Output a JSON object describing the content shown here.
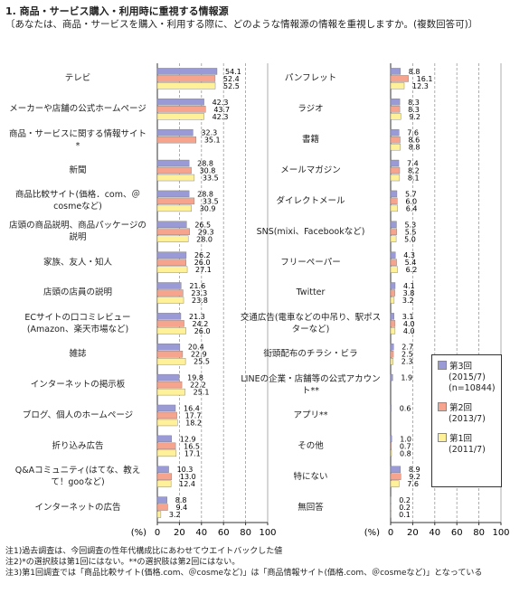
{
  "title": "1. 商品・サービス購入・利用時に重視する情報源",
  "subtitle": "〔あなたは、商品・サービスを購入・利用する際に、どのような情報源の情報を重視しますか。(複数回答可)〕",
  "notes": [
    "注1)過去調査は、今回調査の性年代構成比にあわせてウエイトバックした値",
    "注2)*の選択肢は第1回にはない。**の選択肢は第2回にはない。",
    "注3)第1回調査では「商品比較サイト(価格.com、＠cosmeなど)」は「商品情報サイト(価格.com、＠cosmeなど)」となっている"
  ],
  "chart_data": [
    {
      "type": "bar",
      "orientation": "horizontal",
      "x_label": "(%)",
      "xlim": [
        0,
        100
      ],
      "xticks": [
        0,
        20,
        40,
        60,
        80,
        100
      ],
      "grid": true,
      "categories": [
        "テレビ",
        "メーカーや店舗の公式ホームページ",
        "商品・サービスに関する情報サイト*",
        "新聞",
        "商品比較サイト(価格．com、＠cosmeなど)",
        "店頭の商品説明、商品パッケージの説明",
        "家族、友人・知人",
        "店頭の店員の説明",
        "ECサイトの口コミレビュー(Amazon、楽天市場など)",
        "雑誌",
        "インターネットの掲示板",
        "ブログ、個人のホームページ",
        "折り込み広告",
        "Q&Aコミュニティ(はてな、教えて！gooなど)",
        "インターネットの広告"
      ],
      "series": [
        {
          "name": "第3回",
          "color": "#9a9ad6",
          "values": [
            54.1,
            42.3,
            32.3,
            28.8,
            28.8,
            26.5,
            26.2,
            21.6,
            21.3,
            20.4,
            19.8,
            16.4,
            12.9,
            10.3,
            8.8
          ],
          "value_labels": [
            "54.1",
            "42.3",
            "32.3",
            "28.8",
            "28.8",
            "26.5",
            "26.2",
            "21.6",
            "21.3",
            "20.4",
            "19.8",
            "16.4",
            "12.9",
            "10.3",
            "8.8"
          ]
        },
        {
          "name": "第2回",
          "color": "#f6a48e",
          "values": [
            52.4,
            43.7,
            35.1,
            30.8,
            33.5,
            29.3,
            26.0,
            23.3,
            24.2,
            22.9,
            22.2,
            17.7,
            16.5,
            13.0,
            9.4
          ],
          "value_labels": [
            "52.4",
            "43.7",
            "35.1",
            "30.8",
            "33.5",
            "29.3",
            "26.0",
            "23.3",
            "24.2",
            "22.9",
            "22.2",
            "17.7",
            "16.5",
            "13.0",
            "9.4"
          ]
        },
        {
          "name": "第1回",
          "color": "#fff09a",
          "values": [
            52.5,
            42.3,
            null,
            33.5,
            30.9,
            28.0,
            27.1,
            23.8,
            26.0,
            25.5,
            25.1,
            18.2,
            17.1,
            12.4,
            3.2
          ],
          "value_labels": [
            "52.5",
            "42.3",
            null,
            "33.5",
            "30.9",
            "28.0",
            "27.1",
            "23.8",
            "26.0",
            "25.5",
            "25.1",
            "18.2",
            "17.1",
            "12.4",
            "3.2"
          ]
        }
      ]
    },
    {
      "type": "bar",
      "orientation": "horizontal",
      "x_label": "(%)",
      "xlim": [
        0,
        100
      ],
      "xticks": [
        0,
        20,
        40,
        60,
        80,
        100
      ],
      "grid": true,
      "legend": "lower right",
      "categories": [
        "パンフレット",
        "ラジオ",
        "書籍",
        "メールマガジン",
        "ダイレクトメール",
        "SNS(mixi、Facebookなど)",
        "フリーペーパー",
        "Twitter",
        "交通広告(電車などの中吊り、駅ポスターなど)",
        "街頭配布のチラシ・ビラ",
        "LINEの企業・店舗等の公式アカウント**",
        "アプリ**",
        "その他",
        "特にない",
        "無回答"
      ],
      "series": [
        {
          "name": "第3回",
          "period": "(2015/7)",
          "sample": "(n=10844)",
          "color": "#9a9ad6",
          "values": [
            8.8,
            8.3,
            7.6,
            7.4,
            5.7,
            5.3,
            4.3,
            4.1,
            3.1,
            2.7,
            1.9,
            0.6,
            1.0,
            8.9,
            0.2
          ],
          "value_labels": [
            "8.8",
            "8.3",
            "7.6",
            "7.4",
            "5.7",
            "5.3",
            "4.3",
            "4.1",
            "3.1",
            "2.7",
            "1.9",
            "0.6",
            "1.0",
            "8.9",
            "0.2"
          ]
        },
        {
          "name": "第2回",
          "period": "(2013/7)",
          "color": "#f6a48e",
          "values": [
            16.1,
            8.3,
            8.6,
            8.2,
            6.0,
            5.5,
            5.4,
            3.8,
            4.0,
            2.5,
            null,
            null,
            0.7,
            9.2,
            0.2
          ],
          "value_labels": [
            "16.1",
            "8.3",
            "8.6",
            "8.2",
            "6.0",
            "5.5",
            "5.4",
            "3.8",
            "4.0",
            "2.5",
            null,
            null,
            "0.7",
            "9.2",
            "0.2"
          ]
        },
        {
          "name": "第1回",
          "period": "(2011/7)",
          "color": "#fff09a",
          "values": [
            12.3,
            9.2,
            8.8,
            8.1,
            6.4,
            5.0,
            6.2,
            3.2,
            4.0,
            2.3,
            null,
            null,
            0.8,
            7.6,
            0.1
          ],
          "value_labels": [
            "12.3",
            "9.2",
            "8.8",
            "8.1",
            "6.4",
            "5.0",
            "6.2",
            "3.2",
            "4.0",
            "2.3",
            null,
            null,
            "0.8",
            "7.6",
            "0.1"
          ]
        }
      ]
    }
  ]
}
